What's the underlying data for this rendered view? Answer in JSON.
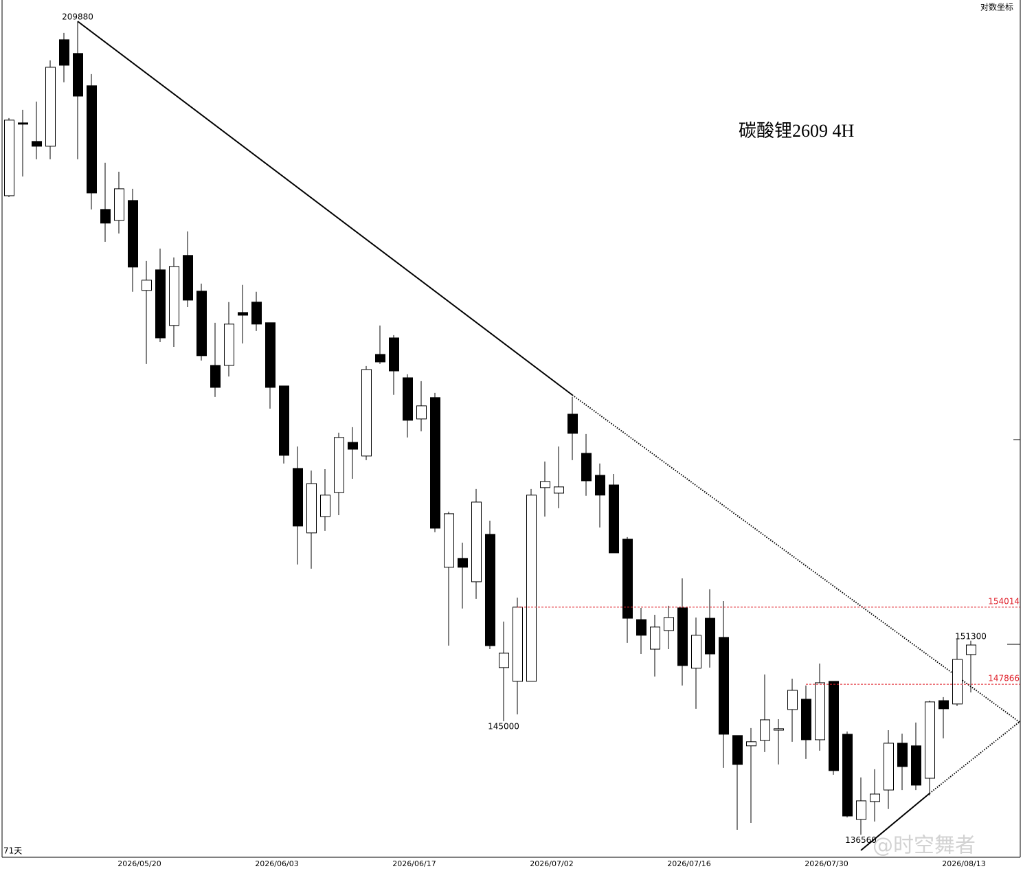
{
  "chart_data": {
    "type": "candlestick",
    "title": "碳酸锂2609  4H",
    "scale_note": "对数坐标",
    "period_label": "71天",
    "watermark": "@时空舞者",
    "log_scale": true,
    "ylim": [
      134850,
      212250
    ],
    "categories": [
      null,
      null,
      null,
      null,
      null,
      null,
      null,
      null,
      null,
      null,
      "2026/05/20",
      null,
      null,
      null,
      null,
      null,
      null,
      null,
      null,
      null,
      "2026/06/03",
      null,
      null,
      null,
      null,
      null,
      null,
      null,
      null,
      null,
      "2026/06/17",
      null,
      null,
      null,
      null,
      null,
      null,
      null,
      null,
      null,
      "2026/07/02",
      null,
      null,
      null,
      null,
      null,
      null,
      null,
      null,
      null,
      "2026/07/16",
      null,
      null,
      null,
      null,
      null,
      null,
      null,
      null,
      null,
      "2026/07/30",
      null,
      null,
      null,
      null,
      null,
      null,
      null,
      null,
      null,
      "2026/08/13"
    ],
    "open": [
      191400,
      198910,
      196970,
      196470,
      207840,
      206340,
      202850,
      190020,
      188920,
      190920,
      182060,
      184050,
      178720,
      185460,
      181990,
      174990,
      174990,
      179950,
      180940,
      178980,
      173100,
      165720,
      160170,
      161560,
      163630,
      168020,
      166810,
      176010,
      177550,
      173850,
      170110,
      172040,
      157290,
      158030,
      156090,
      160050,
      149170,
      148090,
      148090,
      164050,
      163570,
      170540,
      167050,
      165120,
      164280,
      159640,
      153000,
      150630,
      152120,
      153950,
      149120,
      153110,
      151570,
      143910,
      143130,
      143540,
      144320,
      145900,
      146700,
      143590,
      148090,
      144010,
      137670,
      138980,
      139830,
      143330,
      143130,
      140700,
      146590,
      146330,
      150200
    ],
    "high": [
      199420,
      200290,
      201160,
      205590,
      208590,
      209880,
      204100,
      194770,
      193840,
      192100,
      184920,
      186130,
      185260,
      187830,
      182720,
      178980,
      180940,
      182590,
      181930,
      178980,
      173100,
      167650,
      165540,
      165660,
      168880,
      169370,
      174930,
      178720,
      177810,
      174170,
      173540,
      172470,
      161980,
      159350,
      163930,
      161210,
      152840,
      154790,
      163930,
      166330,
      167650,
      172100,
      168760,
      166150,
      165240,
      159820,
      153950,
      153390,
      154120,
      156370,
      153170,
      155470,
      154510,
      143910,
      144480,
      148630,
      145160,
      148300,
      147760,
      149490,
      148090,
      144220,
      140760,
      141370,
      144320,
      144060,
      144900,
      146590,
      146860,
      151460,
      151300
    ],
    "low": [
      191260,
      193360,
      195120,
      195120,
      203220,
      195120,
      190020,
      186800,
      187620,
      181930,
      175120,
      177160,
      176710,
      180470,
      175440,
      172100,
      173970,
      177030,
      178200,
      171040,
      166150,
      157520,
      157170,
      160340,
      161680,
      164820,
      166450,
      175120,
      172290,
      168450,
      169000,
      160230,
      150910,
      153900,
      154680,
      150630,
      145000,
      145530,
      148090,
      161560,
      162270,
      166450,
      163340,
      160630,
      158490,
      151130,
      150250,
      148470,
      150630,
      147760,
      145960,
      149170,
      141470,
      136920,
      137420,
      142660,
      141730,
      143440,
      142140,
      142760,
      140960,
      137820,
      136560,
      137520,
      138430,
      139830,
      139830,
      139430,
      143700,
      146170,
      147230
    ],
    "close": [
      199200,
      198770,
      196470,
      204840,
      205060,
      201740,
      191680,
      188650,
      192100,
      184320,
      183050,
      177550,
      184380,
      181130,
      175890,
      172970,
      178850,
      179690,
      178850,
      172970,
      166870,
      160750,
      164400,
      163400,
      168450,
      167410,
      174610,
      175310,
      174480,
      169990,
      171290,
      160570,
      161800,
      157290,
      162800,
      150910,
      150310,
      154010,
      163400,
      164580,
      164110,
      168820,
      164640,
      163400,
      158490,
      153110,
      151740,
      152400,
      153170,
      149330,
      151740,
      150250,
      144010,
      141730,
      143440,
      145110,
      144430,
      147390,
      143590,
      147980,
      141270,
      137920,
      139030,
      139530,
      143330,
      141570,
      140190,
      146490,
      145960,
      149820,
      150960
    ],
    "extreme_labels": [
      209880,
      145000,
      151300,
      136560
    ],
    "levels": [
      154014,
      147866
    ],
    "up_color": "#ffffff",
    "down_color": "#000000",
    "level_color": "#e0202a"
  }
}
